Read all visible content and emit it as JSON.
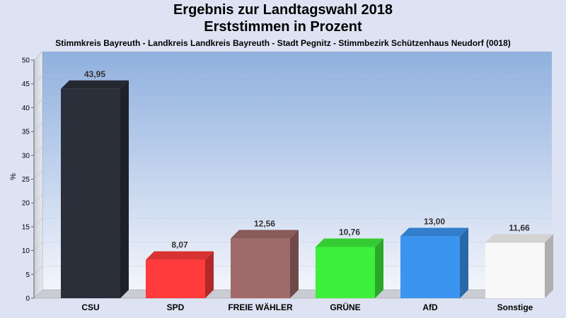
{
  "chart_data": {
    "type": "bar",
    "title": "Ergebnis zur Landtagswahl 2018",
    "subtitle_line": "Erststimmen in Prozent",
    "subtitle": "Stimmkreis Bayreuth - Landkreis Landkreis Bayreuth - Stadt Pegnitz - Stimmbezirk Schützenhaus Neudorf (0018)",
    "ylabel": "%",
    "ylim": [
      0,
      50
    ],
    "yticks": [
      0,
      5,
      10,
      15,
      20,
      25,
      30,
      35,
      40,
      45,
      50
    ],
    "categories": [
      "CSU",
      "SPD",
      "FREIE WÄHLER",
      "GRÜNE",
      "AfD",
      "Sonstige"
    ],
    "values": [
      43.95,
      8.07,
      12.56,
      10.76,
      13.0,
      11.66
    ],
    "value_labels": [
      "43,95",
      "8,07",
      "12,56",
      "10,76",
      "13,00",
      "11,66"
    ],
    "colors": [
      "#2b2f3a",
      "#ff3b3b",
      "#a06a6a",
      "#3cf03c",
      "#3a94f0",
      "#f8f8f8"
    ],
    "legend": "none",
    "grid": true
  }
}
